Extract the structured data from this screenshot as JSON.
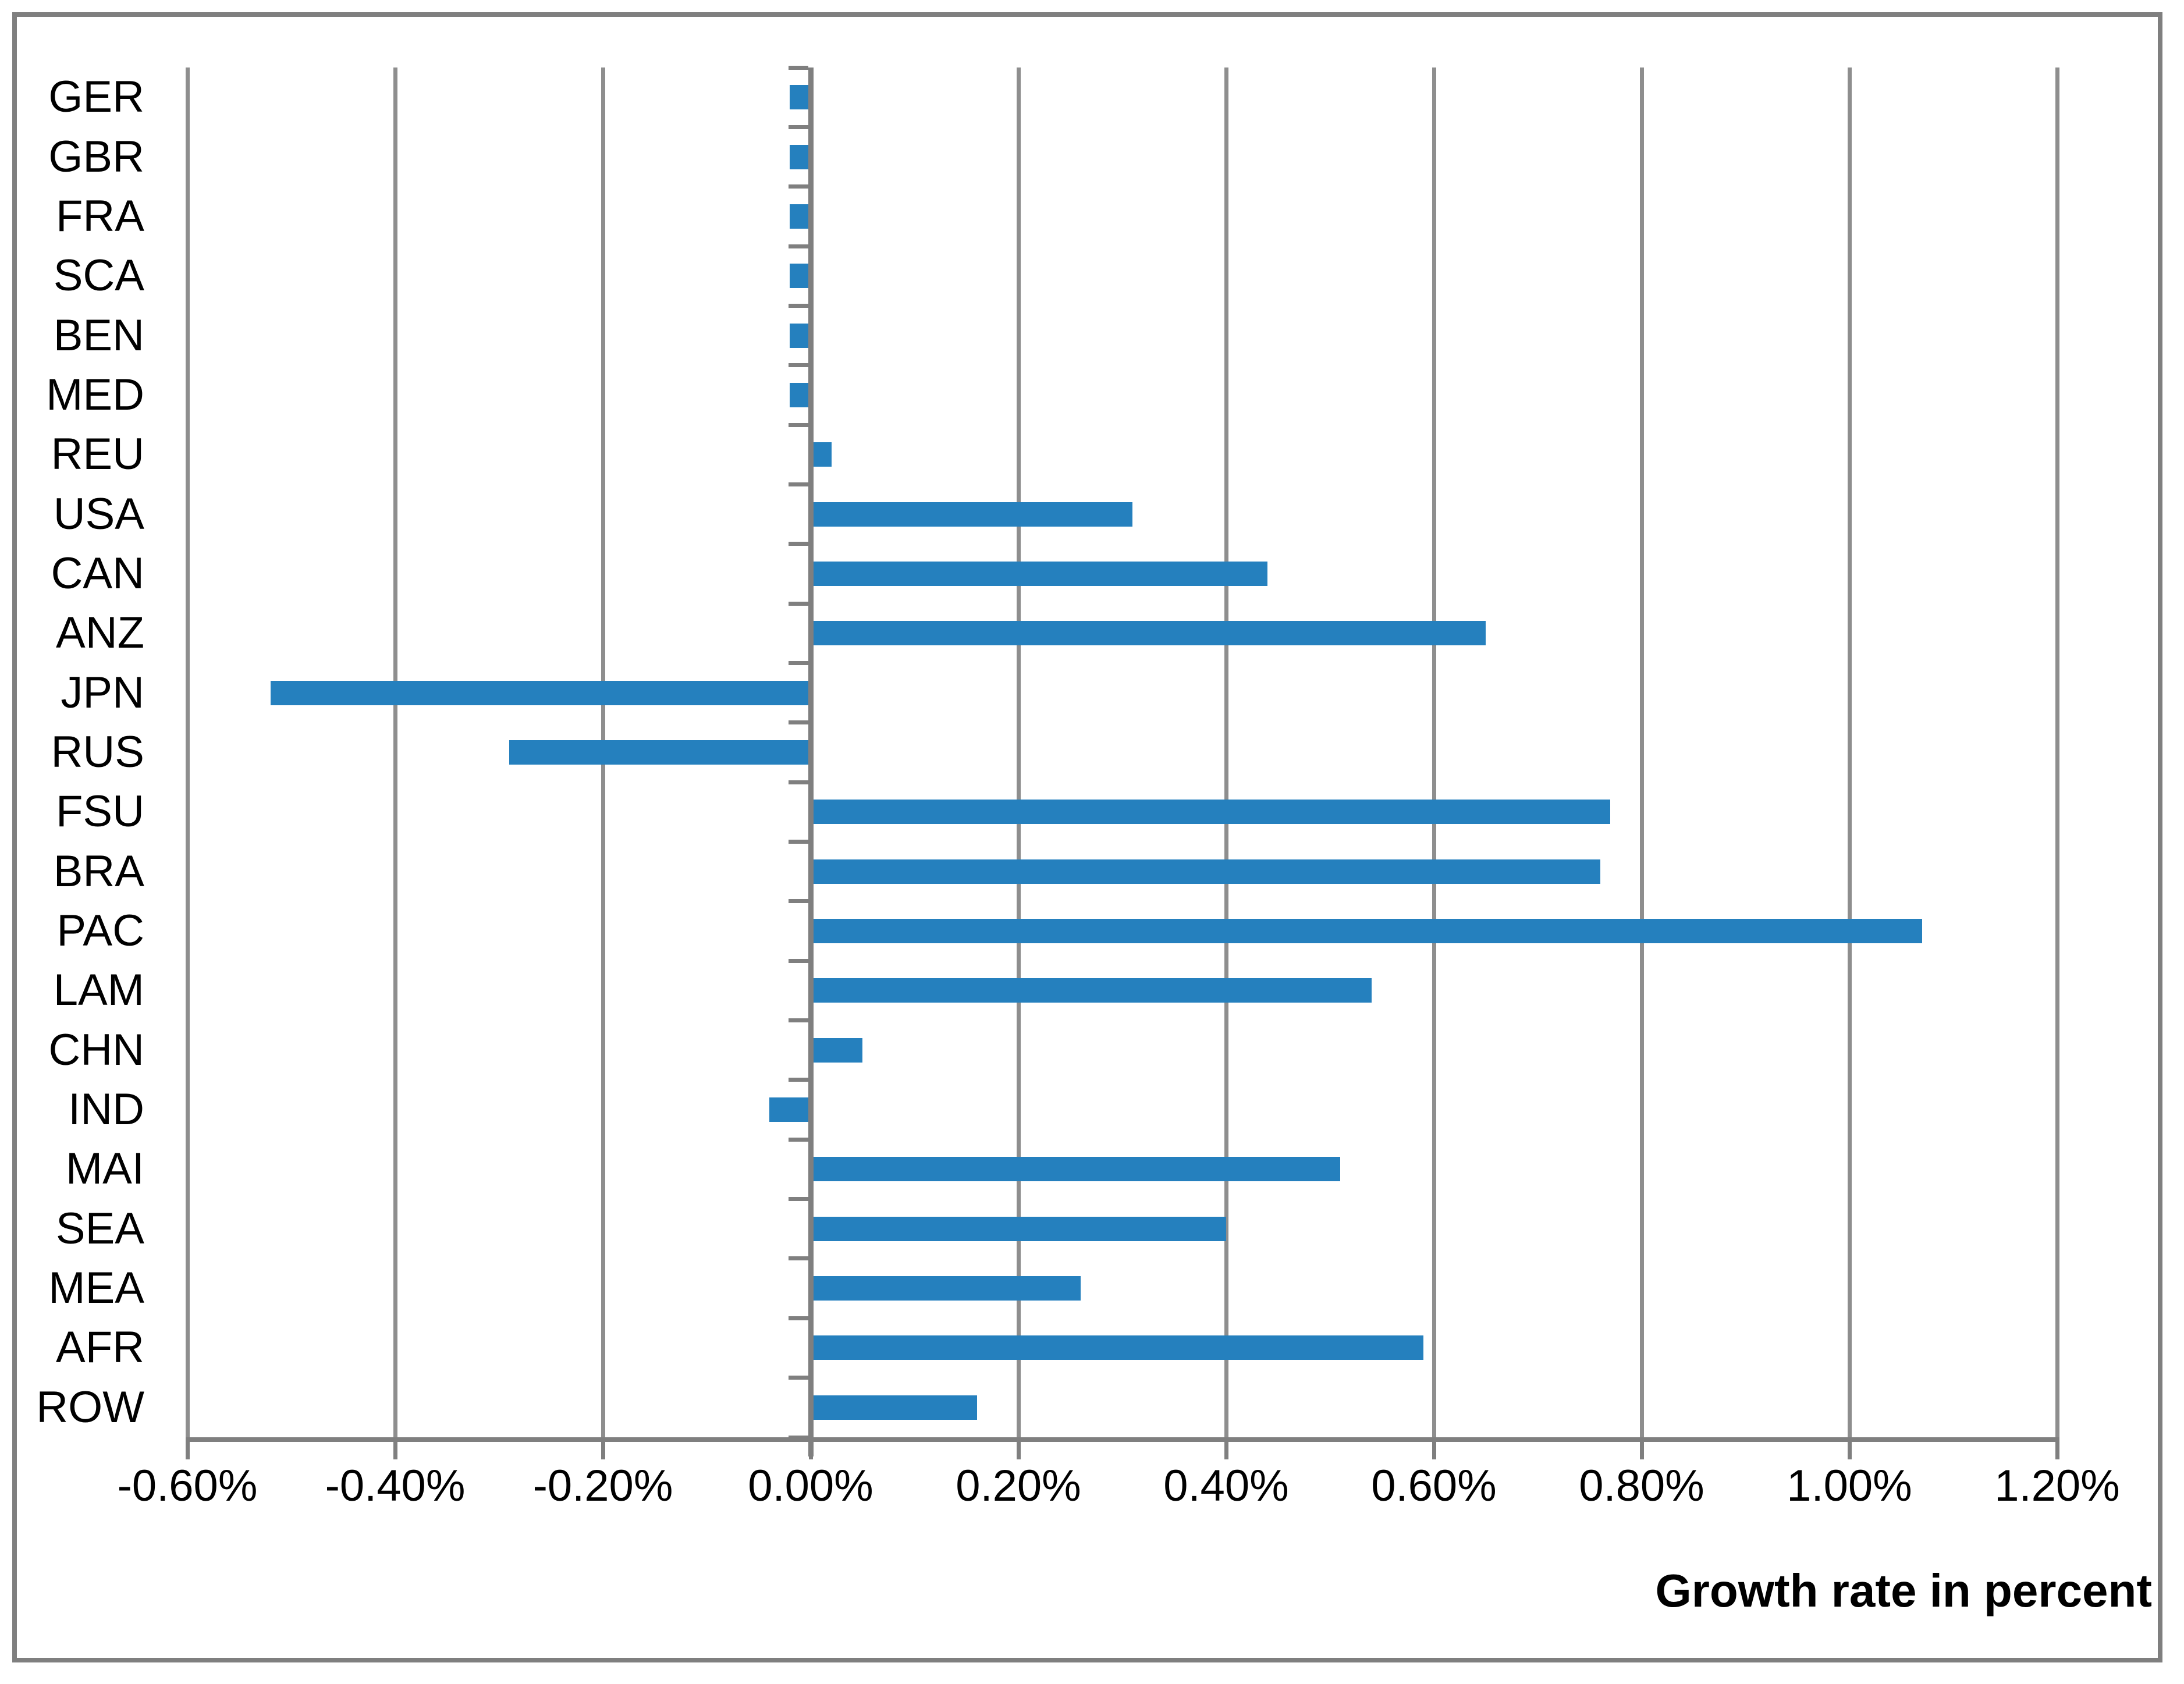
{
  "chart_data": {
    "type": "bar",
    "orientation": "horizontal",
    "title": "",
    "xlabel": "Growth rate in percent",
    "ylabel": "",
    "unit": "%",
    "categories": [
      "GER",
      "GBR",
      "FRA",
      "SCA",
      "BEN",
      "MED",
      "REU",
      "USA",
      "CAN",
      "ANZ",
      "JPN",
      "RUS",
      "FSU",
      "BRA",
      "PAC",
      "LAM",
      "CHN",
      "IND",
      "MAI",
      "SEA",
      "MEA",
      "AFR",
      "ROW"
    ],
    "values": [
      -0.02,
      -0.02,
      -0.02,
      -0.02,
      -0.02,
      -0.02,
      0.02,
      0.31,
      0.44,
      0.65,
      -0.52,
      -0.29,
      0.77,
      0.76,
      1.07,
      0.54,
      0.05,
      -0.04,
      0.51,
      0.4,
      0.26,
      0.59,
      0.16
    ],
    "xlim": [
      -0.6,
      1.2
    ],
    "x_tick_step": 0.2,
    "x_tick_values": [
      -0.6,
      -0.4,
      -0.2,
      0.0,
      0.2,
      0.4,
      0.6,
      0.8,
      1.0,
      1.2
    ],
    "x_tick_labels": [
      "-0.60%",
      "-0.40%",
      "-0.20%",
      "0.00%",
      "0.20%",
      "0.40%",
      "0.60%",
      "0.80%",
      "1.00%",
      "1.20%"
    ],
    "grid": true,
    "legend": false,
    "colors": {
      "bar": "#2580BE",
      "gridline": "#8E8E8E",
      "axis": "#7F7F7F",
      "frame_border": "#7F7F7F",
      "text": "#000000",
      "background": "#FFFFFF"
    }
  }
}
